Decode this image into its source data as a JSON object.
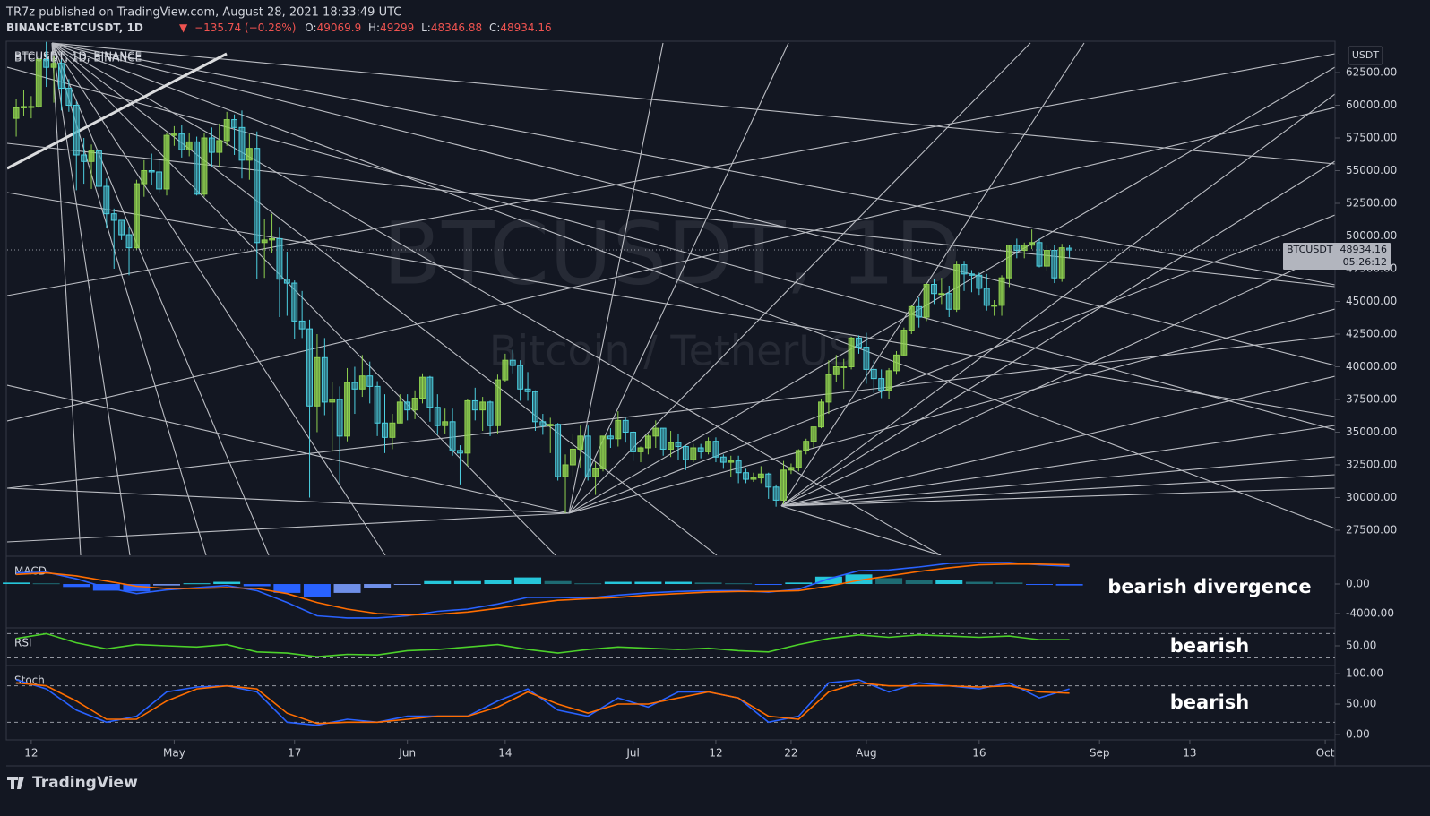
{
  "header": {
    "publisher": "TR7z published on TradingView.com, August 28, 2021 18:33:49 UTC",
    "symbol": "BINANCE:BTCUSDT, 1D",
    "arrow": "▼",
    "change": "−135.74 (−0.28%)",
    "o": "O:",
    "h": "H:",
    "l": "L:",
    "c": "C:"
  },
  "watermark": {
    "title": "BTCUSDT, 1D",
    "subtitle": "Bitcoin / TetherUS"
  },
  "footer": {
    "brand": "TradingView"
  },
  "chart_data": [
    {
      "type": "candlestick",
      "title": "BTCUSDT, 1D, BINANCE",
      "unit": "USDT",
      "price_tag": "BTCUSDT",
      "countdown": "05:26:12",
      "up_color": "#8fd14f",
      "down_color": "#4dd0e1",
      "xlim": [
        -1.2,
        175.3
      ],
      "xticks": [
        {
          "value": 2,
          "label": "12"
        },
        {
          "value": 21,
          "label": "May"
        },
        {
          "value": 37,
          "label": "17"
        },
        {
          "value": 52,
          "label": "Jun"
        },
        {
          "value": 65,
          "label": "14"
        },
        {
          "value": 82,
          "label": "Jul"
        },
        {
          "value": 93,
          "label": "12"
        },
        {
          "value": 103,
          "label": "22"
        },
        {
          "value": 113,
          "label": "Aug"
        },
        {
          "value": 128,
          "label": "16"
        },
        {
          "value": 144,
          "label": "Sep"
        },
        {
          "value": 156,
          "label": "13"
        },
        {
          "value": 174,
          "label": "Oct"
        }
      ],
      "ylim": [
        25580,
        64830
      ],
      "yticks": [
        {
          "value": 27500,
          "label": "27500.00"
        },
        {
          "value": 30000,
          "label": "30000.00"
        },
        {
          "value": 32500,
          "label": "32500.00"
        },
        {
          "value": 35000,
          "label": "35000.00"
        },
        {
          "value": 37500,
          "label": "37500.00"
        },
        {
          "value": 40000,
          "label": "40000.00"
        },
        {
          "value": 42500,
          "label": "42500.00"
        },
        {
          "value": 45000,
          "label": "45000.00"
        },
        {
          "value": 47500,
          "label": "47500.00"
        },
        {
          "value": 50000,
          "label": "50000.00"
        },
        {
          "value": 52500,
          "label": "52500.00"
        },
        {
          "value": 55000,
          "label": "55000.00"
        },
        {
          "value": 57500,
          "label": "57500.00"
        },
        {
          "value": 60000,
          "label": "60000.00"
        },
        {
          "value": 62500,
          "label": "62500.00"
        }
      ],
      "open": [
        59000,
        59800,
        59900,
        59900,
        63500,
        62900,
        63200,
        61300,
        60000,
        56200,
        55700,
        56500,
        53800,
        51700,
        51200,
        50100,
        49100,
        54000,
        55000,
        54900,
        53600,
        57700,
        57800,
        56600,
        57200,
        53200,
        57500,
        56400,
        57300,
        58900,
        58300,
        55800,
        56700,
        49500,
        49700,
        49800,
        46700,
        46400,
        43500,
        42900,
        37000,
        40700,
        37300,
        37500,
        34700,
        38800,
        38300,
        39300,
        38500,
        35700,
        34600,
        35700,
        37300,
        36700,
        37600,
        39200,
        36900,
        35500,
        35800,
        33600,
        33400,
        37400,
        36700,
        37300,
        35500,
        39000,
        40500,
        40100,
        38300,
        38100,
        35800,
        35500,
        35600,
        31600,
        32500,
        33700,
        34700,
        31600,
        32200,
        34700,
        34500,
        35900,
        35000,
        33500,
        33800,
        34700,
        35300,
        33700,
        34200,
        33900,
        32900,
        33800,
        33500,
        34300,
        33100,
        32700,
        32800,
        31900,
        31400,
        31500,
        31800,
        30800,
        29800,
        32100,
        32300,
        33600,
        34300,
        35400,
        37300,
        39400,
        40000,
        40000,
        42200,
        41500,
        39800,
        39100,
        38200,
        39700,
        40900,
        42800,
        44600,
        43800,
        46300,
        45600,
        45600,
        44400,
        47800,
        47100,
        47000,
        46000,
        44700,
        44700,
        46800,
        49300,
        48900,
        49300,
        49500,
        47700,
        48900,
        46800,
        49069.9
      ],
      "high": [
        60500,
        61200,
        60700,
        63800,
        64850,
        63800,
        63500,
        62000,
        60300,
        57500,
        57000,
        56700,
        54400,
        52100,
        51100,
        50700,
        54300,
        55800,
        56300,
        55800,
        57900,
        58400,
        58500,
        57900,
        57600,
        57900,
        58300,
        58600,
        59500,
        59300,
        59600,
        57800,
        58000,
        51300,
        51700,
        50700,
        48800,
        46600,
        45800,
        43600,
        42500,
        42200,
        38800,
        38500,
        39900,
        40000,
        40900,
        40400,
        38900,
        37900,
        36400,
        37900,
        37900,
        38200,
        39500,
        39300,
        37900,
        36800,
        36800,
        34000,
        37500,
        38400,
        37700,
        37400,
        39400,
        41000,
        41300,
        40500,
        39600,
        38200,
        36400,
        36100,
        35700,
        33300,
        34900,
        35500,
        35500,
        32700,
        34700,
        35300,
        36600,
        36100,
        35100,
        33900,
        34900,
        35900,
        35300,
        35100,
        34900,
        34000,
        34100,
        34100,
        34600,
        34600,
        33300,
        33200,
        33200,
        32200,
        31900,
        32400,
        31900,
        31000,
        32800,
        32600,
        33700,
        34500,
        35400,
        37500,
        40500,
        40900,
        40600,
        42300,
        42400,
        42600,
        40500,
        39800,
        39900,
        41200,
        43000,
        44700,
        45300,
        46400,
        46700,
        46800,
        46200,
        48100,
        48100,
        47400,
        47200,
        47100,
        45100,
        47000,
        49300,
        49800,
        49500,
        50500,
        49800,
        49300,
        49300,
        49400,
        49299
      ],
      "low": [
        57600,
        59200,
        59000,
        59800,
        61400,
        60200,
        59600,
        59500,
        53500,
        54000,
        53600,
        53500,
        50600,
        47500,
        49700,
        47000,
        48900,
        53000,
        53900,
        53300,
        53100,
        56900,
        56000,
        56100,
        53100,
        53000,
        55300,
        55300,
        56900,
        56200,
        54400,
        54300,
        46700,
        46800,
        48700,
        43800,
        43900,
        42100,
        42200,
        30000,
        35000,
        36300,
        33500,
        31100,
        34300,
        36400,
        37700,
        37200,
        34700,
        33400,
        33700,
        35700,
        35900,
        36000,
        37200,
        35800,
        34800,
        34900,
        33200,
        31000,
        32400,
        35900,
        35100,
        34700,
        34900,
        38800,
        39500,
        37400,
        37400,
        35100,
        34800,
        33400,
        31300,
        28800,
        31600,
        32300,
        31300,
        30200,
        32000,
        33800,
        33900,
        34200,
        32800,
        32700,
        33300,
        33800,
        33200,
        33100,
        32900,
        32100,
        32700,
        33000,
        33300,
        32700,
        32200,
        31600,
        31100,
        31100,
        31200,
        31100,
        29900,
        29300,
        29500,
        31800,
        32000,
        33300,
        33800,
        35300,
        36400,
        38800,
        38300,
        39800,
        41000,
        38700,
        38000,
        37600,
        37500,
        39400,
        40800,
        42500,
        43000,
        43500,
        44800,
        44800,
        43800,
        44200,
        45800,
        45700,
        45500,
        44300,
        43900,
        43900,
        46100,
        48300,
        48300,
        49000,
        47600,
        47300,
        46400,
        46500,
        48346.88
      ],
      "close": [
        59800,
        59900,
        59900,
        63500,
        62900,
        63200,
        61300,
        60000,
        56200,
        55700,
        56500,
        53800,
        51700,
        51200,
        50100,
        49100,
        54000,
        55000,
        54900,
        53600,
        57700,
        57800,
        56600,
        57200,
        53200,
        57500,
        56400,
        57300,
        58900,
        58300,
        55800,
        56700,
        49500,
        49700,
        49800,
        46700,
        46400,
        43500,
        42900,
        37000,
        40700,
        37300,
        37500,
        34700,
        38800,
        38300,
        39300,
        38500,
        35700,
        34600,
        35700,
        37300,
        36700,
        37600,
        39200,
        36900,
        35500,
        35800,
        33600,
        33400,
        37400,
        36700,
        37300,
        35500,
        39000,
        40500,
        40100,
        38300,
        38100,
        35800,
        35500,
        35600,
        31600,
        32500,
        33700,
        34700,
        31600,
        32200,
        34700,
        34500,
        35900,
        35000,
        33500,
        33800,
        34700,
        35300,
        33700,
        34200,
        33900,
        32900,
        33800,
        33500,
        34300,
        33100,
        32700,
        32800,
        31900,
        31400,
        31500,
        31800,
        30800,
        29800,
        32100,
        32300,
        33600,
        34300,
        35400,
        37300,
        39400,
        40000,
        40000,
        42200,
        41500,
        39800,
        39100,
        38200,
        39700,
        40900,
        42800,
        44600,
        43800,
        46300,
        45600,
        45600,
        44400,
        47800,
        47100,
        47000,
        46000,
        44700,
        44700,
        46800,
        49300,
        48900,
        49300,
        49500,
        47700,
        48900,
        46800,
        49100,
        48934.16
      ]
    },
    {
      "type": "macd",
      "title": "MACD",
      "annotation": "bearish divergence",
      "ylim": [
        -5820,
        3640
      ],
      "yticks": [
        {
          "value": 0,
          "label": "0.00"
        },
        {
          "value": -4000,
          "label": "-4000.00"
        }
      ],
      "x": [
        0,
        4,
        8,
        12,
        16,
        20,
        24,
        28,
        32,
        36,
        40,
        44,
        48,
        52,
        56,
        60,
        64,
        68,
        72,
        76,
        80,
        84,
        88,
        92,
        96,
        100,
        104,
        108,
        112,
        116,
        120,
        124,
        128,
        132,
        136,
        140
      ],
      "series": [
        {
          "name": "MACD",
          "color": "#2962ff",
          "values": [
            1500,
            1600,
            700,
            -500,
            -1300,
            -800,
            -500,
            -200,
            -900,
            -2500,
            -4300,
            -4600,
            -4600,
            -4300,
            -3700,
            -3400,
            -2700,
            -1800,
            -1800,
            -1900,
            -1500,
            -1200,
            -1000,
            -900,
            -900,
            -1100,
            -700,
            700,
            1800,
            1900,
            2300,
            2800,
            2900,
            2900,
            2600,
            2400
          ]
        },
        {
          "name": "Signal",
          "color": "#ff6d00",
          "values": [
            1300,
            1500,
            1100,
            400,
            -300,
            -600,
            -600,
            -500,
            -600,
            -1300,
            -2500,
            -3400,
            -4000,
            -4200,
            -4100,
            -3800,
            -3300,
            -2700,
            -2200,
            -2000,
            -1800,
            -1500,
            -1300,
            -1100,
            -1000,
            -1000,
            -900,
            -300,
            500,
            1100,
            1700,
            2200,
            2600,
            2700,
            2700,
            2600
          ]
        },
        {
          "name": "Histogram",
          "color": "#26c6da",
          "values": [
            200,
            100,
            -400,
            -900,
            -1000,
            -200,
            100,
            300,
            -300,
            -1200,
            -1800,
            -1200,
            -600,
            -100,
            400,
            400,
            600,
            900,
            400,
            100,
            300,
            300,
            300,
            200,
            100,
            -100,
            200,
            1000,
            1300,
            800,
            600,
            600,
            300,
            200,
            -100,
            -200
          ]
        }
      ]
    },
    {
      "type": "line",
      "title": "RSI",
      "annotation": "bearish",
      "ylim": [
        19,
        78
      ],
      "yticks": [
        {
          "value": 50,
          "label": "50.00"
        }
      ],
      "levels": [
        30,
        70
      ],
      "x": [
        0,
        4,
        8,
        12,
        16,
        20,
        24,
        28,
        32,
        36,
        40,
        44,
        48,
        52,
        56,
        60,
        64,
        68,
        72,
        76,
        80,
        84,
        88,
        92,
        96,
        100,
        104,
        108,
        112,
        116,
        120,
        124,
        128,
        132,
        136,
        140
      ],
      "series": [
        {
          "name": "RSI",
          "color": "#4cd12a",
          "values": [
            62,
            70,
            55,
            45,
            52,
            50,
            48,
            52,
            40,
            38,
            32,
            36,
            35,
            42,
            44,
            48,
            52,
            44,
            38,
            44,
            48,
            46,
            44,
            46,
            42,
            40,
            52,
            62,
            68,
            64,
            68,
            66,
            64,
            66,
            60,
            60
          ]
        }
      ]
    },
    {
      "type": "line",
      "title": "Stoch",
      "annotation": "bearish",
      "ylim": [
        -9,
        112
      ],
      "yticks": [
        {
          "value": 100,
          "label": "100.00"
        },
        {
          "value": 50,
          "label": "50.00"
        },
        {
          "value": 0,
          "label": "0.00"
        }
      ],
      "levels": [
        20,
        80
      ],
      "x": [
        0,
        4,
        8,
        12,
        16,
        20,
        24,
        28,
        32,
        36,
        40,
        44,
        48,
        52,
        56,
        60,
        64,
        68,
        72,
        76,
        80,
        84,
        88,
        92,
        96,
        100,
        104,
        108,
        112,
        116,
        120,
        124,
        128,
        132,
        136,
        140
      ],
      "series": [
        {
          "name": "%K",
          "color": "#2962ff",
          "values": [
            90,
            75,
            40,
            20,
            30,
            70,
            78,
            80,
            70,
            20,
            15,
            25,
            20,
            30,
            30,
            30,
            55,
            75,
            40,
            30,
            60,
            45,
            70,
            70,
            60,
            20,
            30,
            85,
            90,
            70,
            85,
            80,
            75,
            85,
            60,
            75
          ]
        },
        {
          "name": "%D",
          "color": "#ff6d00",
          "values": [
            85,
            80,
            55,
            25,
            25,
            55,
            75,
            80,
            75,
            35,
            18,
            20,
            20,
            25,
            30,
            30,
            45,
            70,
            50,
            35,
            50,
            50,
            60,
            70,
            60,
            30,
            25,
            70,
            85,
            80,
            80,
            80,
            78,
            80,
            70,
            68
          ]
        }
      ]
    }
  ]
}
